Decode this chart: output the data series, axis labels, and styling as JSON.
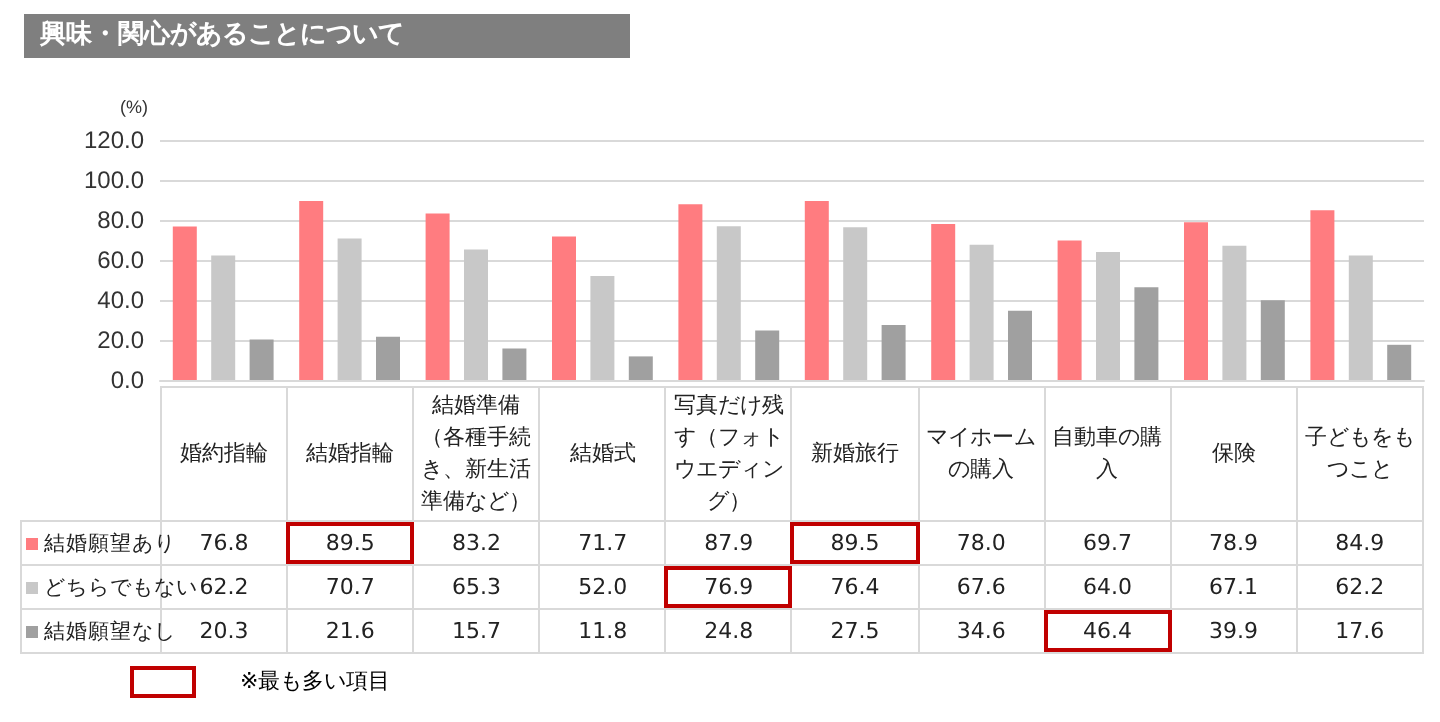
{
  "chart_data": {
    "type": "bar",
    "title": "興味・関心があることについて",
    "ylabel": "(%)",
    "categories": [
      "婚約指輪",
      "結婚指輪",
      "結婚準備（各種手続き、新生活準備など）",
      "結婚式",
      "写真だけ残す（フォトウエディング）",
      "新婚旅行",
      "マイホームの購入",
      "自動車の購入",
      "保険",
      "子どもをもつこと"
    ],
    "series": [
      {
        "name": "結婚願望あり",
        "color": "#ff7c80",
        "values": [
          76.8,
          89.5,
          83.2,
          71.7,
          87.9,
          89.5,
          78.0,
          69.7,
          78.9,
          84.9
        ],
        "value_labels": [
          "76.8",
          "89.5",
          "83.2",
          "71.7",
          "87.9",
          "89.5",
          "78.0",
          "69.7",
          "78.9",
          "84.9"
        ]
      },
      {
        "name": "どちらでもない",
        "color": "#c8c8c8",
        "values": [
          62.2,
          70.7,
          65.3,
          52.0,
          76.9,
          76.4,
          67.6,
          64.0,
          67.1,
          62.2
        ],
        "value_labels": [
          "62.2",
          "70.7",
          "65.3",
          "52.0",
          "76.9",
          "76.4",
          "67.6",
          "64.0",
          "67.1",
          "62.2"
        ]
      },
      {
        "name": "結婚願望なし",
        "color": "#a0a0a0",
        "values": [
          20.3,
          21.6,
          15.7,
          11.8,
          24.8,
          27.5,
          34.6,
          46.4,
          39.9,
          17.6
        ],
        "value_labels": [
          "20.3",
          "21.6",
          "15.7",
          "11.8",
          "24.8",
          "27.5",
          "34.6",
          "46.4",
          "39.9",
          "17.6"
        ]
      }
    ],
    "ylim": [
      0,
      120
    ],
    "yticks": [
      {
        "value": 0,
        "label": "0.0"
      },
      {
        "value": 20,
        "label": "20.0"
      },
      {
        "value": 40,
        "label": "40.0"
      },
      {
        "value": 60,
        "label": "60.0"
      },
      {
        "value": 80,
        "label": "80.0"
      },
      {
        "value": 100,
        "label": "100.0"
      },
      {
        "value": 120,
        "label": "120.0"
      }
    ],
    "grid": "y",
    "legend": "bottom left",
    "annotations": [
      "※最も多い項目"
    ]
  }
}
